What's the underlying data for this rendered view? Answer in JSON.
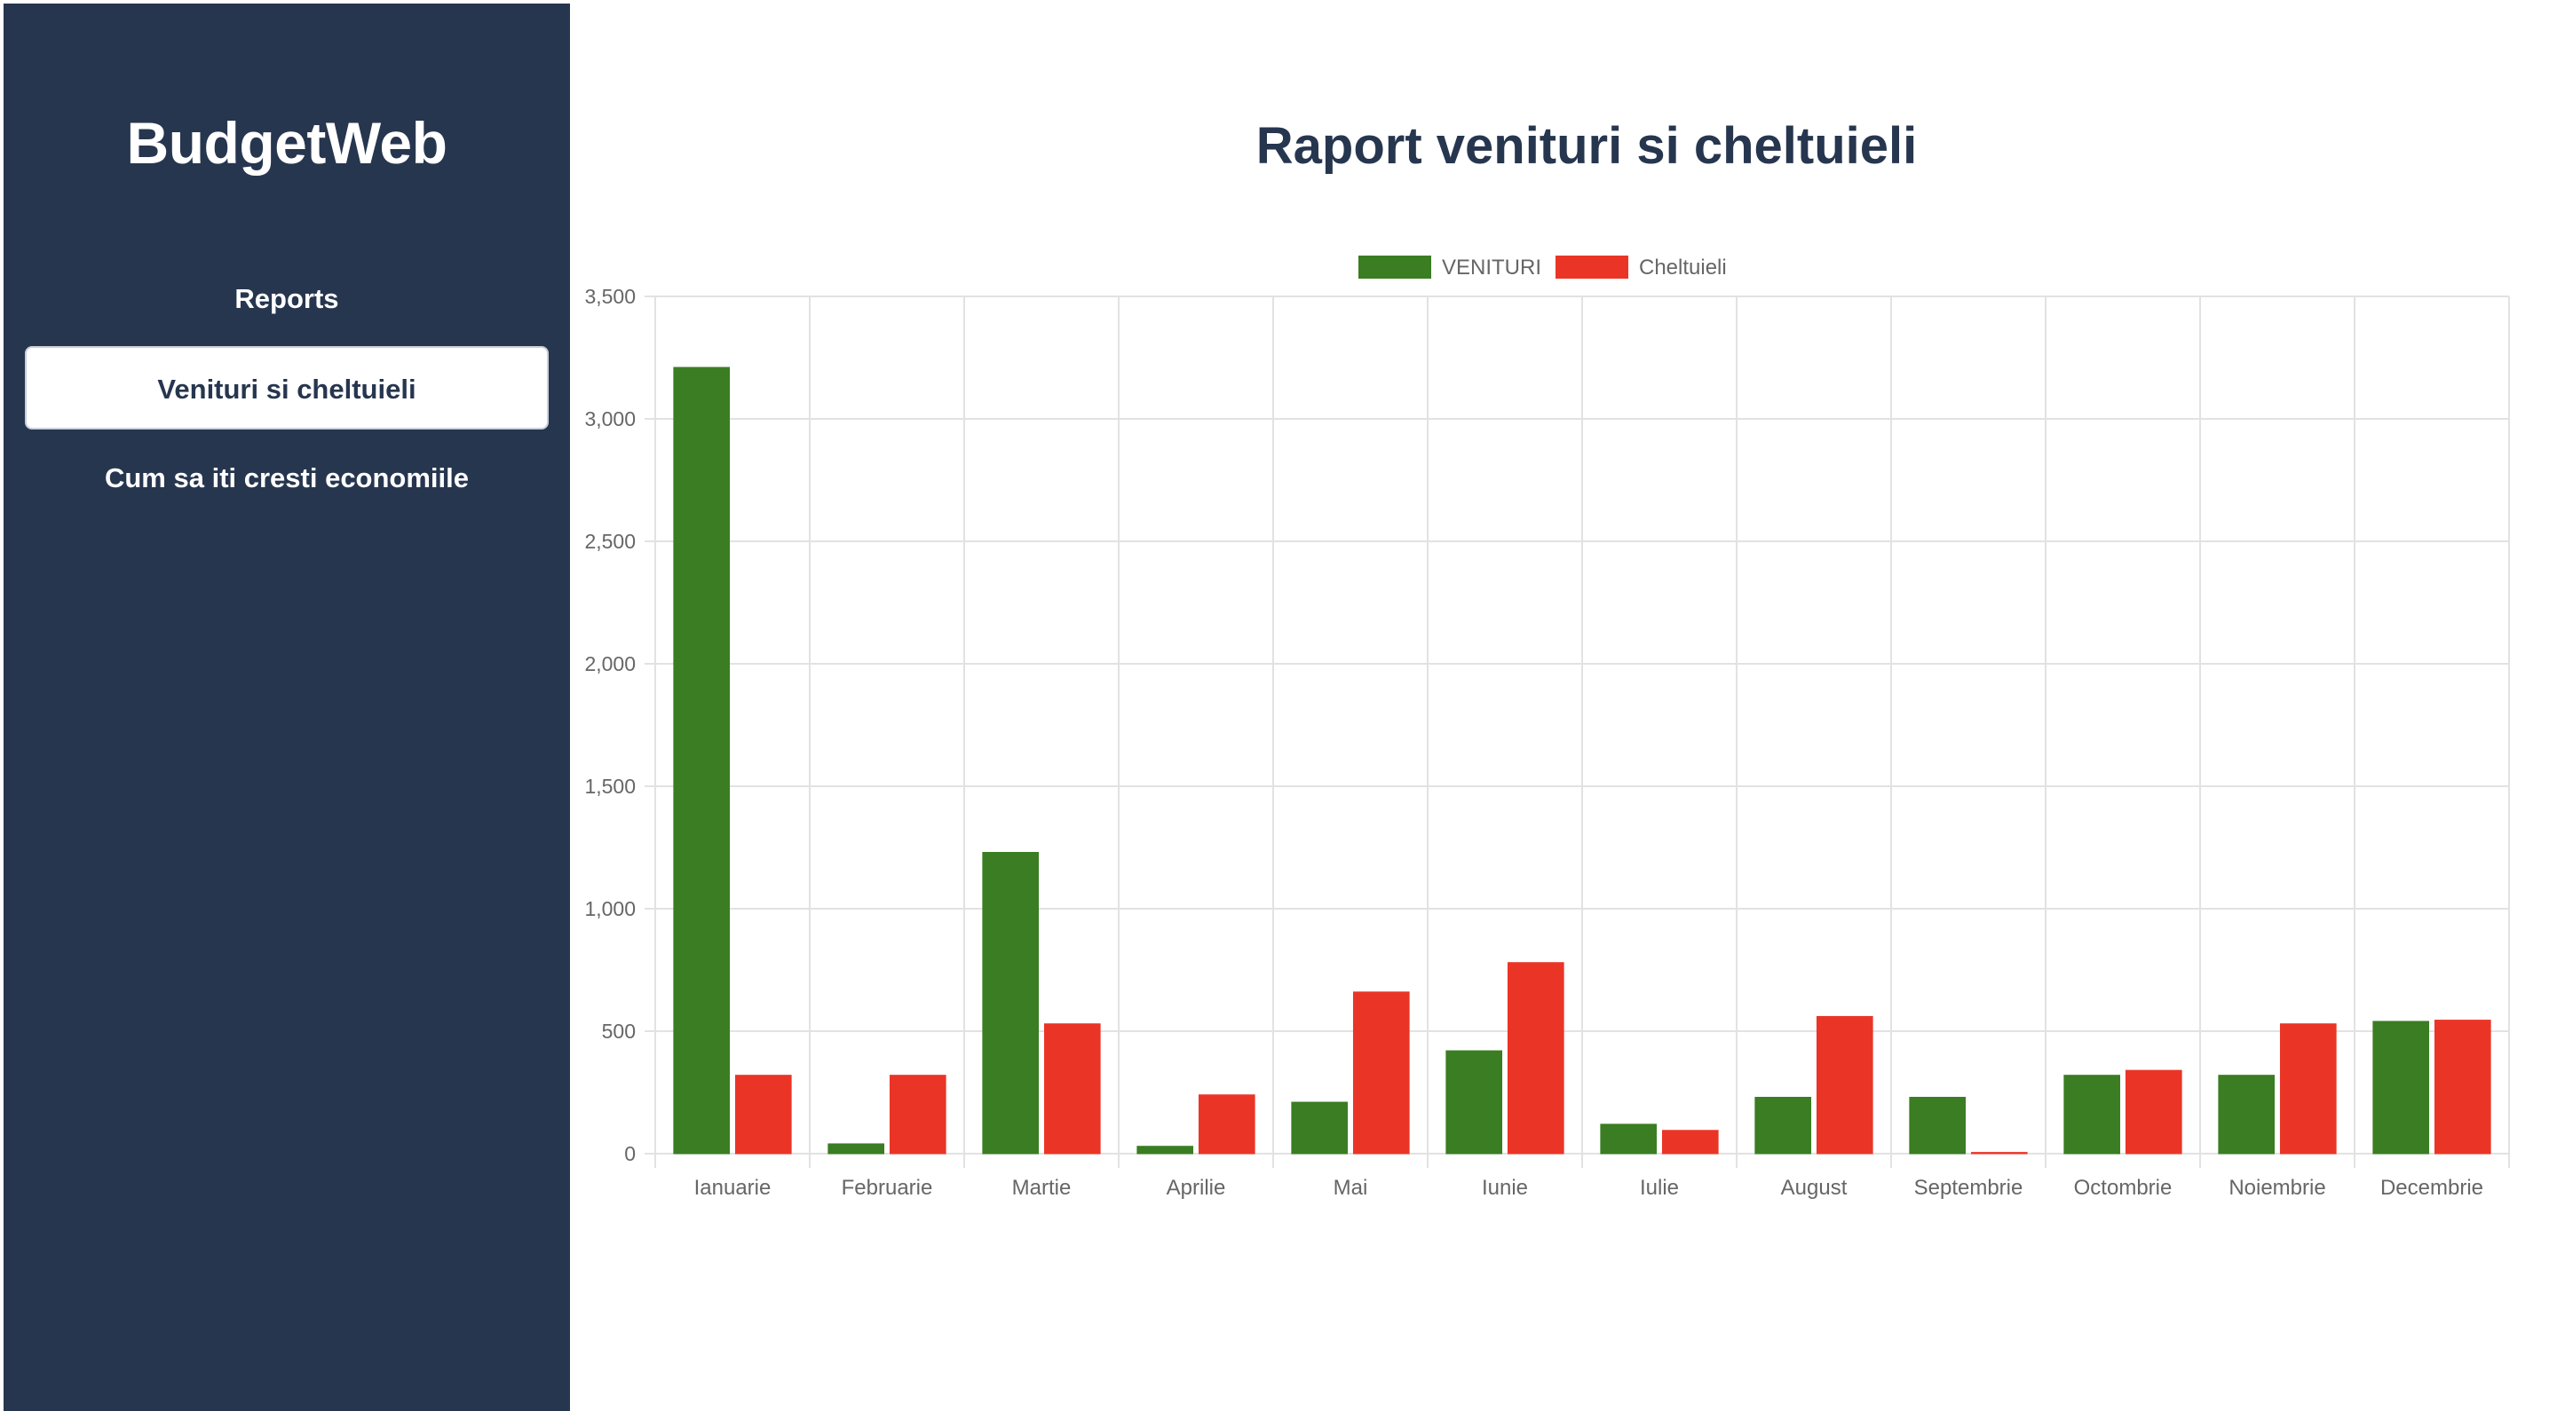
{
  "sidebar": {
    "app_title": "BudgetWeb",
    "nav": [
      {
        "label": "Reports",
        "active": false
      },
      {
        "label": "Venituri si cheltuieli",
        "active": true
      },
      {
        "label": "Cum sa iti cresti economiile",
        "active": false
      }
    ]
  },
  "main": {
    "title": "Raport venituri si cheltuieli"
  },
  "colors": {
    "sidebar_bg": "#27364f",
    "venituri": "#3a7d22",
    "cheltuieli": "#ea3526"
  },
  "chart_data": {
    "type": "bar",
    "categories": [
      "Ianuarie",
      "Februarie",
      "Martie",
      "Aprilie",
      "Mai",
      "Iunie",
      "Iulie",
      "August",
      "Septembrie",
      "Octombrie",
      "Noiembrie",
      "Decembrie"
    ],
    "series": [
      {
        "name": "VENITURI",
        "color": "#3a7d22",
        "values": [
          3210,
          40,
          1230,
          30,
          210,
          420,
          120,
          230,
          230,
          320,
          320,
          540
        ]
      },
      {
        "name": "Cheltuieli",
        "color": "#ea3526",
        "values": [
          320,
          320,
          530,
          240,
          660,
          780,
          95,
          560,
          5,
          340,
          530,
          545
        ]
      }
    ],
    "yticks": [
      0,
      500,
      1000,
      1500,
      2000,
      2500,
      3000,
      3500
    ],
    "ytick_labels": [
      "0",
      "500",
      "1,000",
      "1,500",
      "2,000",
      "2,500",
      "3,000",
      "3,500"
    ],
    "ylim": [
      0,
      3500
    ],
    "grid": true,
    "legend_position": "top-center"
  }
}
